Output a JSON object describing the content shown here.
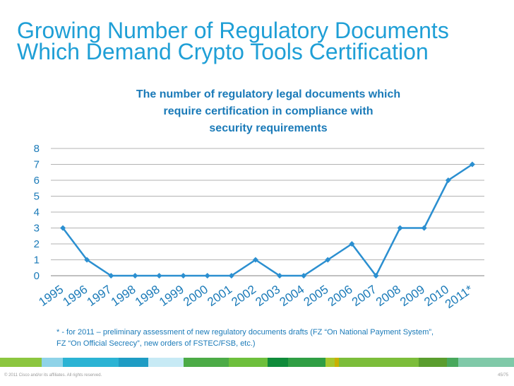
{
  "slide": {
    "title_line1": "Growing Number of Regulatory Documents",
    "title_line2": "Which Demand Crypto Tools Certification",
    "footnote_line1": "* - for 2011 – preliminary assessment of new regulatory documents drafts (FZ “On National Payment System”,",
    "footnote_line2": "FZ “On Official Secrecy”, new orders of  FSTEC/FSB, etc.)",
    "copyright": "© 2011 Cisco and/or its affiliates. All rights reserved.",
    "page_number": "45/75"
  },
  "colors": {
    "title": "#1f9fd6",
    "text": "#1a7ab8",
    "series": "#2b8fd0",
    "grid": "#9a9a9a",
    "color_bar": [
      "#8cc63f",
      "#8fd3e8",
      "#2bb3d4",
      "#1e9cc4",
      "#c7eaf5",
      "#4cab46",
      "#6dbf3c",
      "#0f8b3a",
      "#2f9e44",
      "#a6c72d",
      "#c8b000",
      "#7cbd3a",
      "#5a9d2e",
      "#48a85c",
      "#7fc9a8"
    ]
  },
  "chart_data": {
    "type": "line",
    "title_line1": "The number of regulatory legal documents which",
    "title_line2": "require certification in compliance with",
    "title_line3": "security requirements",
    "categories": [
      "1995",
      "1996",
      "1997",
      "1998",
      "1998",
      "1999",
      "2000",
      "2001",
      "2002",
      "2003",
      "2004",
      "2005",
      "2006",
      "2007",
      "2008",
      "2009",
      "2010",
      "2011*"
    ],
    "series": [
      {
        "values": [
          3,
          1,
          0,
          0,
          0,
          0,
          0,
          0,
          1,
          0,
          0,
          1,
          2,
          0,
          3,
          3,
          6,
          7
        ]
      }
    ],
    "yticks": [
      "0",
      "1",
      "2",
      "3",
      "4",
      "5",
      "6",
      "7",
      "8"
    ],
    "ylim": [
      0,
      8
    ],
    "grid": true,
    "legend": "none",
    "marker": "diamond"
  }
}
